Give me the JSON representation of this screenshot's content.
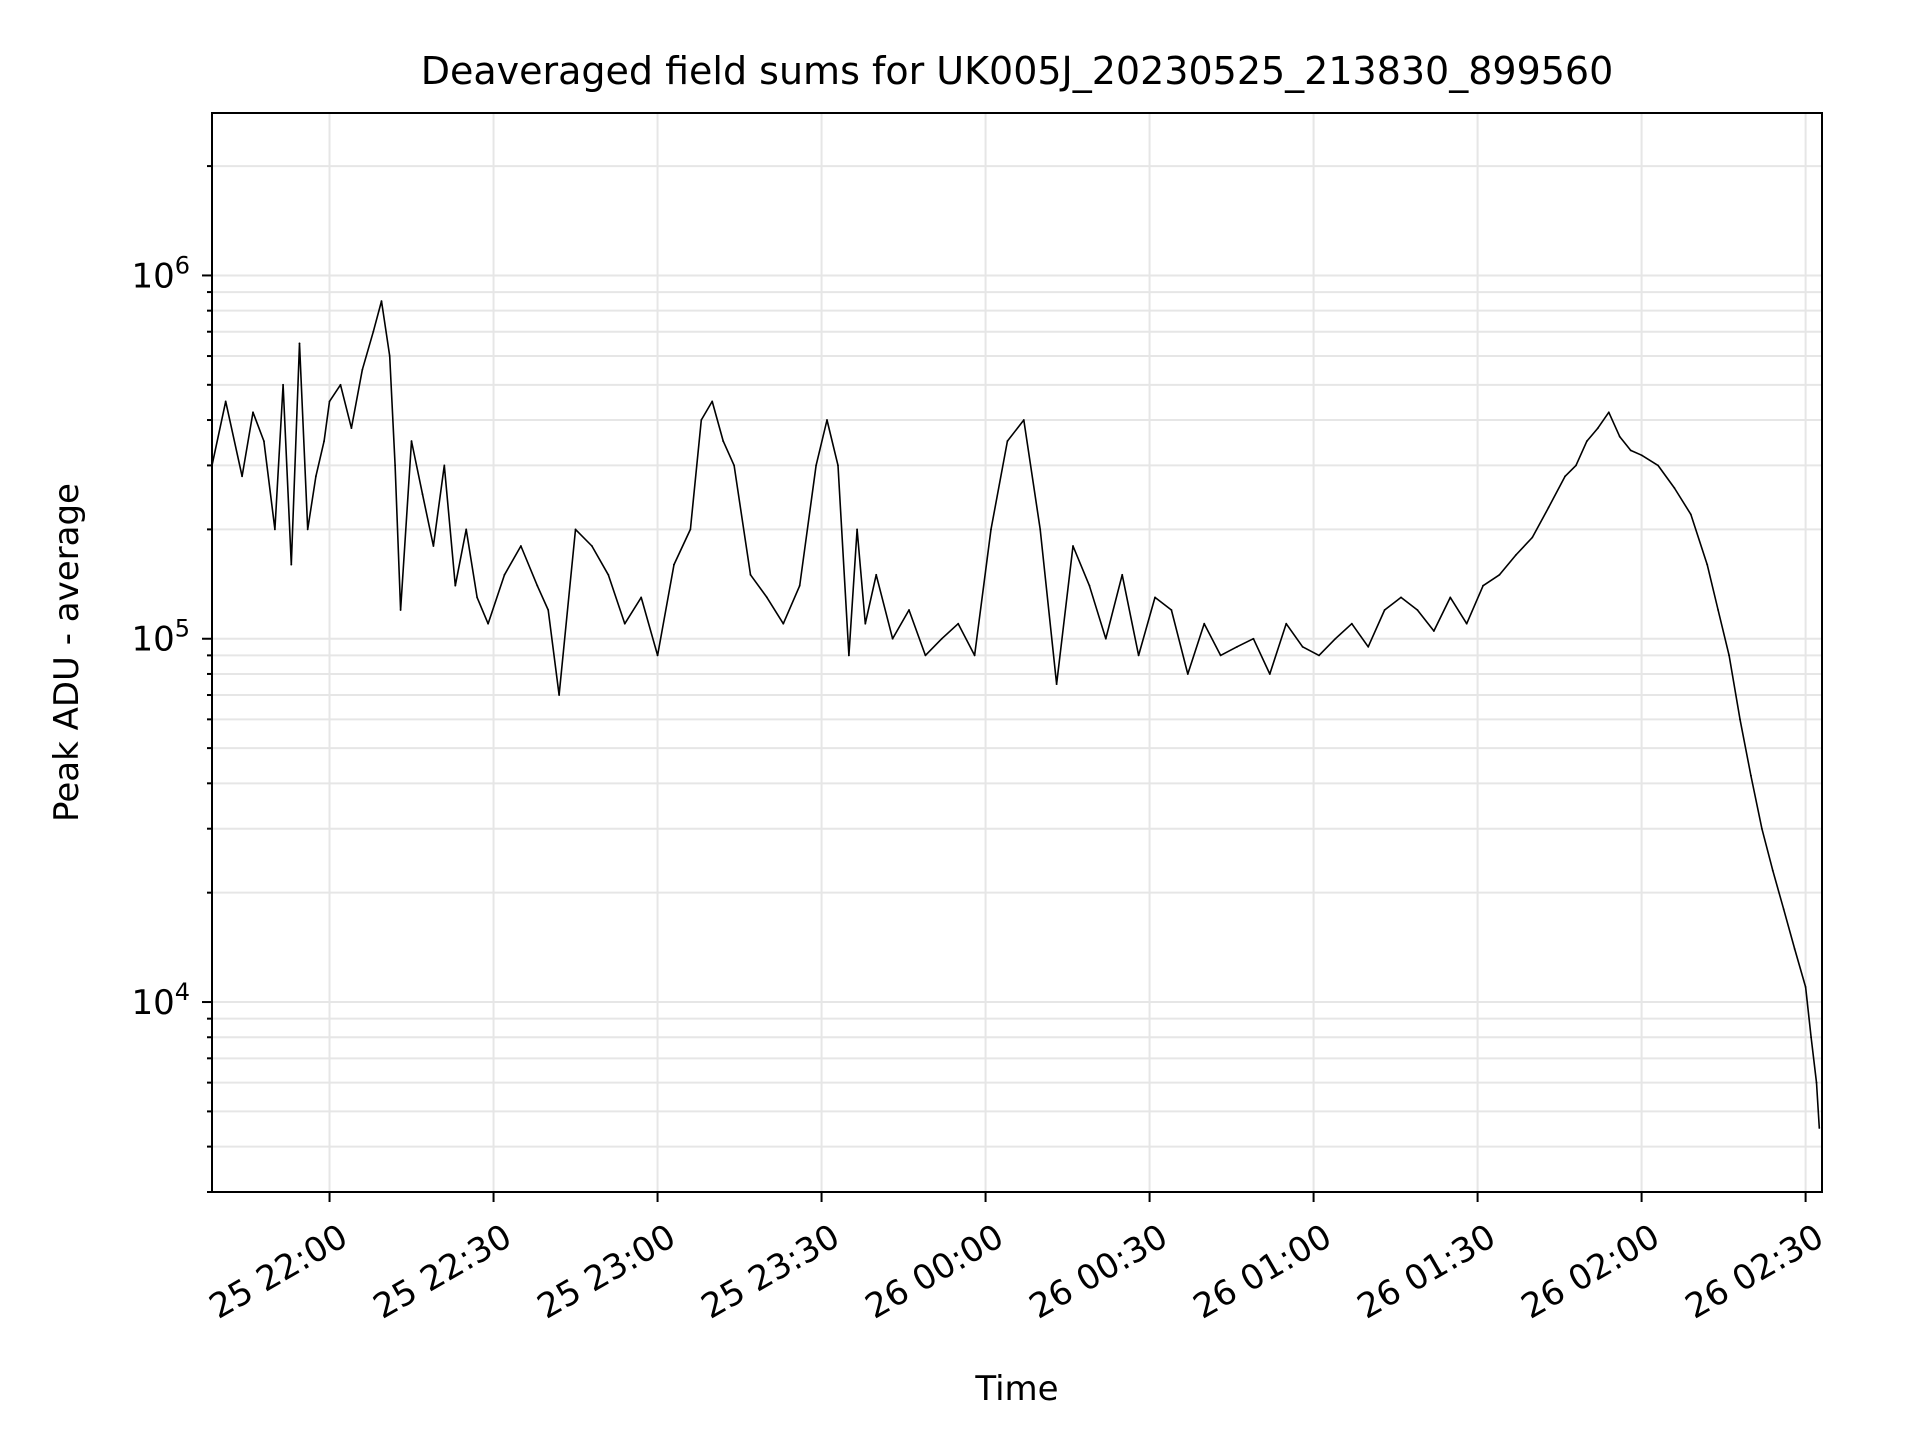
{
  "chart_data": {
    "type": "line",
    "title": "Deaveraged field sums for UK005J_20230525_213830_899560",
    "xlabel": "Time",
    "ylabel": "Peak ADU - average",
    "yscale": "log",
    "grid": true,
    "x_ticks": [
      "25 22:00",
      "25 22:30",
      "25 23:00",
      "25 23:30",
      "26 00:00",
      "26 00:30",
      "26 01:00",
      "26 01:30",
      "26 02:00",
      "26 02:30"
    ],
    "y_ticks": [
      {
        "base": "10",
        "exp": "4",
        "value": 10000
      },
      {
        "base": "10",
        "exp": "5",
        "value": 100000
      },
      {
        "base": "10",
        "exp": "6",
        "value": 1000000
      }
    ],
    "xlim": [
      "2023-05-25 21:38:30",
      "2023-05-26 02:33:00"
    ],
    "ylim": [
      3000,
      2800000
    ],
    "line_color": "#000000",
    "series": [
      {
        "x": [
          "2023-05-25 21:38:30",
          "2023-05-25 21:41:00",
          "2023-05-25 21:44:00",
          "2023-05-25 21:46:00",
          "2023-05-25 21:48:00",
          "2023-05-25 21:50:00",
          "2023-05-25 21:51:30",
          "2023-05-25 21:53:00",
          "2023-05-25 21:54:30",
          "2023-05-25 21:56:00",
          "2023-05-25 21:57:30",
          "2023-05-25 21:59:00",
          "2023-05-25 22:00:00",
          "2023-05-25 22:02:00",
          "2023-05-25 22:04:00",
          "2023-05-25 22:06:00",
          "2023-05-25 22:08:00",
          "2023-05-25 22:09:30",
          "2023-05-25 22:11:00",
          "2023-05-25 22:12:00",
          "2023-05-25 22:13:00",
          "2023-05-25 22:15:00",
          "2023-05-25 22:17:00",
          "2023-05-25 22:19:00",
          "2023-05-25 22:21:00",
          "2023-05-25 22:23:00",
          "2023-05-25 22:25:00",
          "2023-05-25 22:27:00",
          "2023-05-25 22:29:00",
          "2023-05-25 22:32:00",
          "2023-05-25 22:35:00",
          "2023-05-25 22:38:00",
          "2023-05-25 22:40:00",
          "2023-05-25 22:42:00",
          "2023-05-25 22:45:00",
          "2023-05-25 22:48:00",
          "2023-05-25 22:51:00",
          "2023-05-25 22:54:00",
          "2023-05-25 22:57:00",
          "2023-05-25 23:00:00",
          "2023-05-25 23:03:00",
          "2023-05-25 23:06:00",
          "2023-05-25 23:08:00",
          "2023-05-25 23:10:00",
          "2023-05-25 23:12:00",
          "2023-05-25 23:14:00",
          "2023-05-25 23:17:00",
          "2023-05-25 23:20:00",
          "2023-05-25 23:23:00",
          "2023-05-25 23:26:00",
          "2023-05-25 23:29:00",
          "2023-05-25 23:31:00",
          "2023-05-25 23:33:00",
          "2023-05-25 23:35:00",
          "2023-05-25 23:36:30",
          "2023-05-25 23:38:00",
          "2023-05-25 23:40:00",
          "2023-05-25 23:43:00",
          "2023-05-25 23:46:00",
          "2023-05-25 23:49:00",
          "2023-05-25 23:52:00",
          "2023-05-25 23:55:00",
          "2023-05-25 23:58:00",
          "2023-05-26 00:01:00",
          "2023-05-26 00:04:00",
          "2023-05-26 00:07:00",
          "2023-05-26 00:10:00",
          "2023-05-26 00:13:00",
          "2023-05-26 00:16:00",
          "2023-05-26 00:19:00",
          "2023-05-26 00:22:00",
          "2023-05-26 00:25:00",
          "2023-05-26 00:28:00",
          "2023-05-26 00:31:00",
          "2023-05-26 00:34:00",
          "2023-05-26 00:37:00",
          "2023-05-26 00:40:00",
          "2023-05-26 00:43:00",
          "2023-05-26 00:46:00",
          "2023-05-26 00:49:00",
          "2023-05-26 00:52:00",
          "2023-05-26 00:55:00",
          "2023-05-26 00:58:00",
          "2023-05-26 01:01:00",
          "2023-05-26 01:04:00",
          "2023-05-26 01:07:00",
          "2023-05-26 01:10:00",
          "2023-05-26 01:13:00",
          "2023-05-26 01:16:00",
          "2023-05-26 01:19:00",
          "2023-05-26 01:22:00",
          "2023-05-26 01:25:00",
          "2023-05-26 01:28:00",
          "2023-05-26 01:31:00",
          "2023-05-26 01:34:00",
          "2023-05-26 01:37:00",
          "2023-05-26 01:40:00",
          "2023-05-26 01:43:00",
          "2023-05-26 01:46:00",
          "2023-05-26 01:48:00",
          "2023-05-26 01:50:00",
          "2023-05-26 01:52:00",
          "2023-05-26 01:54:00",
          "2023-05-26 01:56:00",
          "2023-05-26 01:58:00",
          "2023-05-26 02:00:00",
          "2023-05-26 02:03:00",
          "2023-05-26 02:06:00",
          "2023-05-26 02:09:00",
          "2023-05-26 02:12:00",
          "2023-05-26 02:14:00",
          "2023-05-26 02:16:00",
          "2023-05-26 02:18:00",
          "2023-05-26 02:20:00",
          "2023-05-26 02:22:00",
          "2023-05-26 02:24:00",
          "2023-05-26 02:26:00",
          "2023-05-26 02:28:00",
          "2023-05-26 02:30:00",
          "2023-05-26 02:31:00",
          "2023-05-26 02:32:00",
          "2023-05-26 02:32:30"
        ],
        "y": [
          300000,
          450000,
          280000,
          420000,
          350000,
          200000,
          500000,
          160000,
          650000,
          200000,
          280000,
          350000,
          450000,
          500000,
          380000,
          550000,
          700000,
          850000,
          600000,
          300000,
          120000,
          350000,
          250000,
          180000,
          300000,
          140000,
          200000,
          130000,
          110000,
          150000,
          180000,
          140000,
          120000,
          70000,
          200000,
          180000,
          150000,
          110000,
          130000,
          90000,
          160000,
          200000,
          400000,
          450000,
          350000,
          300000,
          150000,
          130000,
          110000,
          140000,
          300000,
          400000,
          300000,
          90000,
          200000,
          110000,
          150000,
          100000,
          120000,
          90000,
          100000,
          110000,
          90000,
          200000,
          350000,
          400000,
          200000,
          75000,
          180000,
          140000,
          100000,
          150000,
          90000,
          130000,
          120000,
          80000,
          110000,
          90000,
          95000,
          100000,
          80000,
          110000,
          95000,
          90000,
          100000,
          110000,
          95000,
          120000,
          130000,
          120000,
          105000,
          130000,
          110000,
          140000,
          150000,
          170000,
          190000,
          230000,
          280000,
          300000,
          350000,
          380000,
          420000,
          360000,
          330000,
          320000,
          300000,
          260000,
          220000,
          160000,
          120000,
          90000,
          60000,
          42000,
          30000,
          23000,
          18000,
          14000,
          11000,
          8000,
          6000,
          4500
        ]
      }
    ]
  }
}
